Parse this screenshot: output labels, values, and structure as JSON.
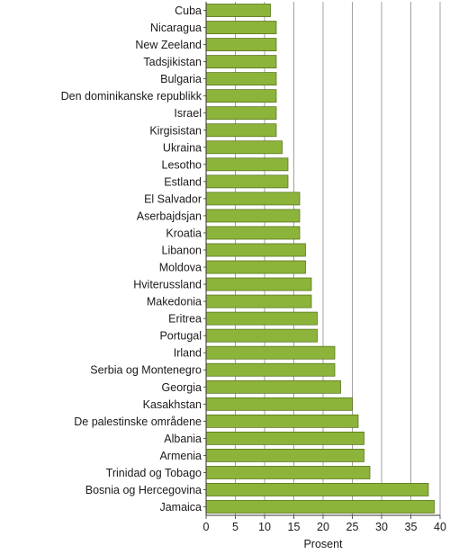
{
  "chart_data": {
    "type": "bar",
    "orientation": "horizontal",
    "title": "",
    "xlabel": "Prosent",
    "ylabel": "",
    "xlim": [
      0,
      40
    ],
    "xticks": [
      0,
      5,
      10,
      15,
      20,
      25,
      30,
      35,
      40
    ],
    "grid": "vertical gridlines at every 5",
    "bar_color": "#8db43a",
    "bar_outline": "#4d6a12",
    "categories": [
      "Cuba",
      "Nicaragua",
      "New Zeeland",
      "Tadsjikistan",
      "Bulgaria",
      "Den dominikanske republikk",
      "Israel",
      "Kirgisistan",
      "Ukraina",
      "Lesotho",
      "Estland",
      "El Salvador",
      "Aserbajdsjan",
      "Kroatia",
      "Libanon",
      "Moldova",
      "Hviterussland",
      "Makedonia",
      "Eritrea",
      "Portugal",
      "Irland",
      "Serbia og Montenegro",
      "Georgia",
      "Kasakhstan",
      "De palestinske områdene",
      "Albania",
      "Armenia",
      "Trinidad og Tobago",
      "Bosnia og Hercegovina",
      "Jamaica"
    ],
    "values": [
      11,
      12,
      12,
      12,
      12,
      12,
      12,
      12,
      13,
      14,
      14,
      16,
      16,
      16,
      17,
      17,
      18,
      18,
      19,
      19,
      22,
      22,
      23,
      25,
      26,
      27,
      27,
      28,
      38,
      39
    ]
  }
}
